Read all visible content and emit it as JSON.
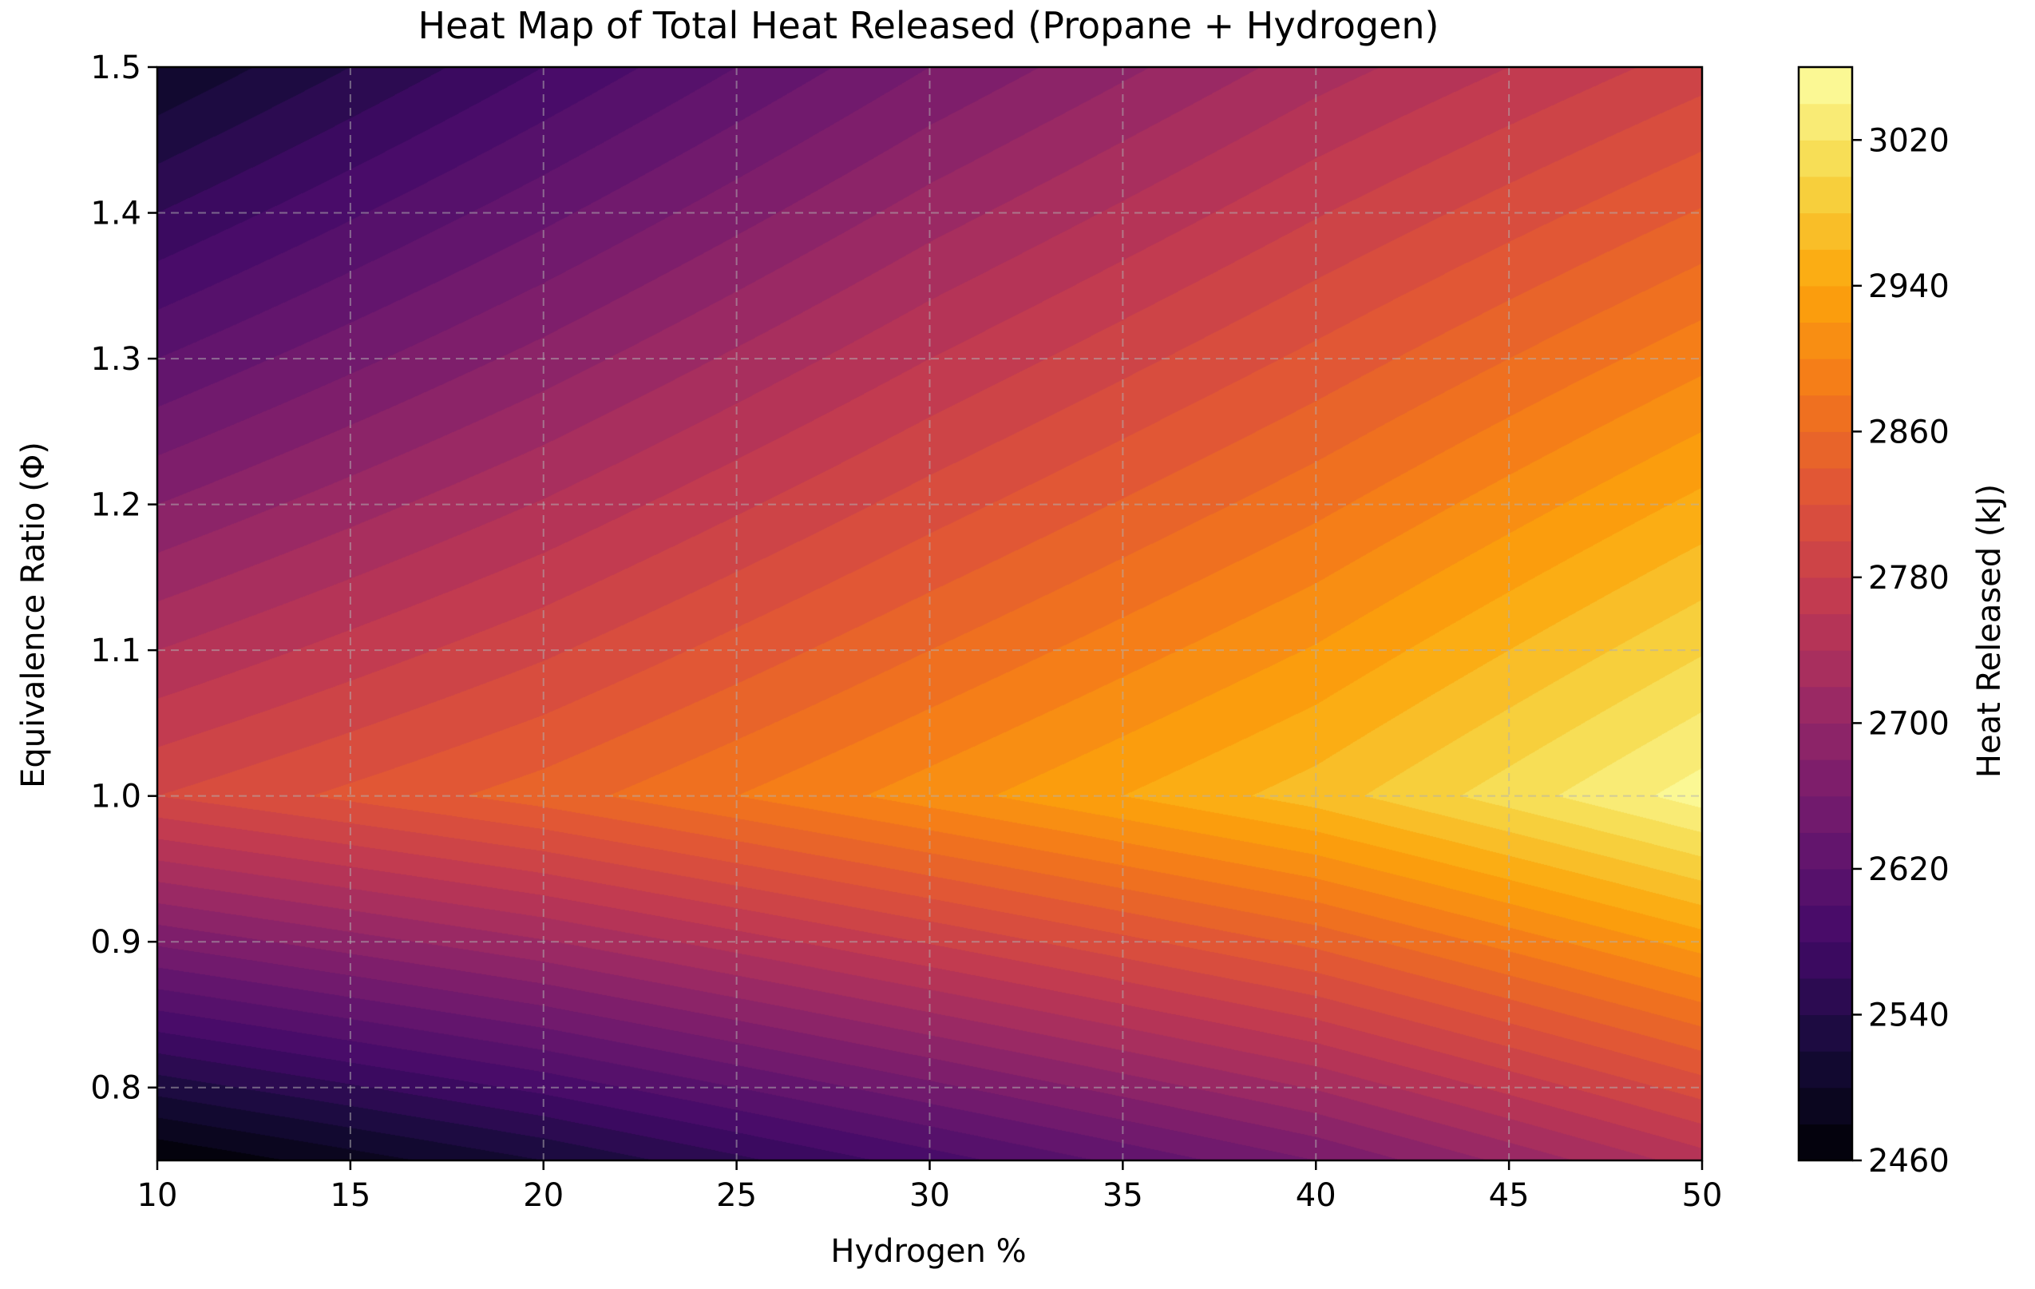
{
  "chart_data": {
    "type": "heatmap",
    "title": "Heat Map of Total Heat Released (Propane + Hydrogen)",
    "xlabel": "Hydrogen %",
    "ylabel": "Equivalence Ratio (Φ)",
    "colorbar_label": "Heat Released (kJ)",
    "colormap": "inferno",
    "xlim": [
      10,
      50
    ],
    "ylim": [
      0.75,
      1.5
    ],
    "clim": [
      2460,
      3060
    ],
    "x_ticks": [
      "10",
      "15",
      "20",
      "25",
      "30",
      "35",
      "40",
      "45",
      "50"
    ],
    "y_ticks": [
      "0.8",
      "0.9",
      "1.0",
      "1.1",
      "1.2",
      "1.3",
      "1.4",
      "1.5"
    ],
    "colorbar_ticks": [
      "2460",
      "2540",
      "2620",
      "2700",
      "2780",
      "2860",
      "2940",
      "3020"
    ],
    "grid": true,
    "x": [
      10,
      20,
      30,
      40,
      50
    ],
    "y": [
      0.75,
      1.0,
      1.5
    ],
    "z": [
      [
        2460,
        2520,
        2590,
        2660,
        2750
      ],
      [
        2800,
        2850,
        2910,
        2970,
        3050
      ],
      [
        2500,
        2580,
        2660,
        2730,
        2790
      ]
    ]
  }
}
